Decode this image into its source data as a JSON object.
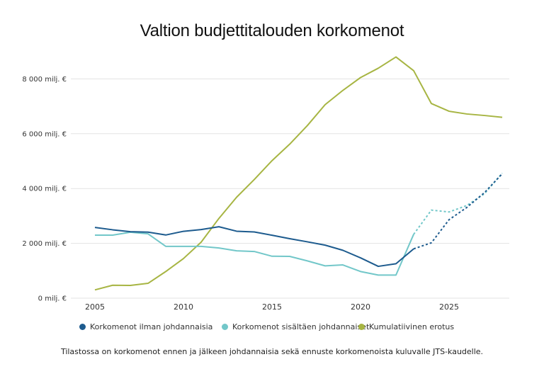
{
  "chart_data": {
    "type": "line",
    "title": "Valtion budjettitalouden korkomenot",
    "caption": "Tilastossa on korkomenot ennen ja jälkeen johdannaisia sekä ennuste korkomenoista kuluvalle JTS-kaudelle.",
    "xlabel": "",
    "ylabel": "",
    "xlim": [
      2003.6,
      2028.4
    ],
    "ylim": [
      0,
      8800
    ],
    "grid": true,
    "legend_position": "bottom",
    "x_ticks": [
      2005,
      2010,
      2015,
      2020,
      2025
    ],
    "x_tick_labels": [
      "2005",
      "2010",
      "2015",
      "2020",
      "2025"
    ],
    "y_ticks": [
      0,
      2000,
      4000,
      6000,
      8000
    ],
    "y_tick_labels": [
      "0 milj. €",
      "2 000 milj. €",
      "4 000 milj. €",
      "6 000 milj. €",
      "8 000 milj. €"
    ],
    "forecast_from": 2023,
    "x": [
      2005,
      2006,
      2007,
      2008,
      2009,
      2010,
      2011,
      2012,
      2013,
      2014,
      2015,
      2016,
      2017,
      2018,
      2019,
      2020,
      2021,
      2022,
      2023,
      2024,
      2025,
      2026,
      2027,
      2028
    ],
    "series": [
      {
        "name": "Korkomenot ilman johdannaisia",
        "color": "#1d5b8e",
        "values": [
          2580,
          2495,
          2425,
          2410,
          2305,
          2440,
          2503,
          2606,
          2443,
          2417,
          2296,
          2170,
          2056,
          1935,
          1747,
          1471,
          1161,
          1256,
          1800,
          2020,
          2864,
          3310,
          3852,
          4540
        ]
      },
      {
        "name": "Korkomenot sisältäen johdannaiset",
        "color": "#72c7c9",
        "values": [
          2300,
          2300,
          2407,
          2348,
          1891,
          1891,
          1891,
          1832,
          1729,
          1703,
          1530,
          1525,
          1360,
          1179,
          1213,
          973,
          844,
          844,
          2330,
          3213,
          3145,
          3380,
          3811,
          4560
        ]
      },
      {
        "name": "Kumulatiivinen erotus",
        "color": "#a7b543",
        "values": [
          302,
          472,
          464,
          542,
          972,
          1445,
          2045,
          2908,
          3682,
          4330,
          5017,
          5620,
          6300,
          7060,
          7580,
          8050,
          8390,
          8800,
          8300,
          7100,
          6820,
          6720,
          6665,
          6600
        ]
      }
    ]
  }
}
